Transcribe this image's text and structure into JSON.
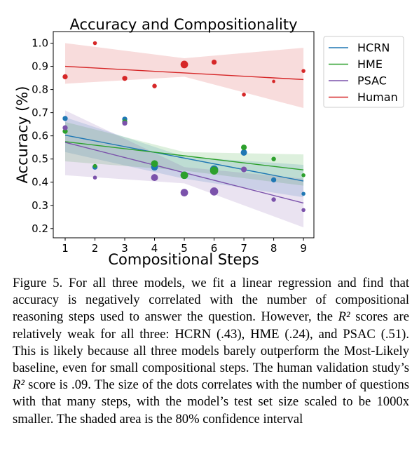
{
  "chart_data": {
    "type": "scatter",
    "title": "Accuracy and Compositionality",
    "xlabel": "Compositional Steps",
    "ylabel": "Accuracy (%)",
    "xlim": [
      0.6,
      9.35
    ],
    "ylim": [
      0.16,
      1.05
    ],
    "x_ticks": [
      1,
      2,
      3,
      4,
      5,
      6,
      7,
      8,
      9
    ],
    "y_ticks": [
      0.2,
      0.3,
      0.4,
      0.5,
      0.6,
      0.7,
      0.8,
      0.9,
      1.0
    ],
    "x_tick_labels": [
      "1",
      "2",
      "3",
      "4",
      "5",
      "6",
      "7",
      "8",
      "9"
    ],
    "y_tick_labels": [
      "0.2",
      "0.3",
      "0.4",
      "0.5",
      "0.6",
      "0.7",
      "0.8",
      "0.9",
      "1.0"
    ],
    "grid": false,
    "legend_position": "outside-right-top",
    "series": [
      {
        "name": "HCRN",
        "color": "#1f77b4",
        "points": [
          [
            1,
            0.675,
            0.5
          ],
          [
            2,
            0.465,
            0.5
          ],
          [
            3,
            0.672,
            0.5
          ],
          [
            4,
            0.465,
            0.8
          ],
          [
            5,
            0.43,
            0.9
          ],
          [
            6,
            0.455,
            1.0
          ],
          [
            7,
            0.528,
            0.7
          ],
          [
            8,
            0.41,
            0.5
          ],
          [
            9,
            0.35,
            0.3
          ]
        ],
        "fit": {
          "x": [
            1,
            9
          ],
          "y": [
            0.603,
            0.405
          ]
        },
        "ci": {
          "x": [
            1,
            5,
            9
          ],
          "upper": [
            0.68,
            0.51,
            0.475
          ],
          "lower": [
            0.53,
            0.415,
            0.335
          ]
        }
      },
      {
        "name": "HME",
        "color": "#2ca02c",
        "points": [
          [
            1,
            0.62,
            0.5
          ],
          [
            2,
            0.47,
            0.3
          ],
          [
            3,
            0.66,
            0.5
          ],
          [
            4,
            0.48,
            0.8
          ],
          [
            5,
            0.43,
            0.9
          ],
          [
            6,
            0.45,
            1.0
          ],
          [
            7,
            0.55,
            0.6
          ],
          [
            8,
            0.5,
            0.4
          ],
          [
            9,
            0.43,
            0.3
          ]
        ],
        "fit": {
          "x": [
            1,
            9
          ],
          "y": [
            0.575,
            0.453
          ]
        },
        "ci": {
          "x": [
            1,
            5,
            9
          ],
          "upper": [
            0.66,
            0.53,
            0.52
          ],
          "lower": [
            0.49,
            0.45,
            0.385
          ]
        }
      },
      {
        "name": "PSAC",
        "color": "#7b52ab",
        "points": [
          [
            1,
            0.635,
            0.5
          ],
          [
            2,
            0.42,
            0.3
          ],
          [
            3,
            0.655,
            0.5
          ],
          [
            4,
            0.42,
            0.8
          ],
          [
            5,
            0.355,
            0.9
          ],
          [
            6,
            0.36,
            1.0
          ],
          [
            7,
            0.455,
            0.6
          ],
          [
            8,
            0.325,
            0.4
          ],
          [
            9,
            0.28,
            0.3
          ]
        ],
        "fit": {
          "x": [
            1,
            9
          ],
          "y": [
            0.572,
            0.31
          ]
        },
        "ci": {
          "x": [
            1,
            5,
            9
          ],
          "upper": [
            0.71,
            0.465,
            0.415
          ],
          "lower": [
            0.43,
            0.395,
            0.205
          ]
        }
      },
      {
        "name": "Human",
        "color": "#d62728",
        "points": [
          [
            1,
            0.855,
            0.5
          ],
          [
            2,
            1.0,
            0.3
          ],
          [
            3,
            0.848,
            0.5
          ],
          [
            4,
            0.815,
            0.4
          ],
          [
            5,
            0.908,
            0.9
          ],
          [
            6,
            0.918,
            0.5
          ],
          [
            7,
            0.778,
            0.3
          ],
          [
            8,
            0.835,
            0.2
          ],
          [
            9,
            0.88,
            0.3
          ]
        ],
        "fit": {
          "x": [
            1,
            9
          ],
          "y": [
            0.9,
            0.843
          ]
        },
        "ci": {
          "x": [
            1,
            5,
            9
          ],
          "upper": [
            1.0,
            0.935,
            0.98
          ],
          "lower": [
            0.825,
            0.855,
            0.72
          ]
        }
      }
    ]
  },
  "caption": {
    "prefix": "Figure 5. For all three models, we fit a linear regression and find that accuracy is negatively correlated with the number of compositional reasoning steps used to answer the question. However, the ",
    "r2_symbol": "R²",
    "middle": " scores are relatively weak for all three: HCRN (.43), HME (.24), and PSAC (.51). This is likely because all three models barely outperform the Most-Likely baseline, even for small compositional steps. The human validation study’s ",
    "r2_symbol_2": "R²",
    "suffix": " score is .09. The size of the dots correlates with the number of questions with that many steps, with the model’s test set size scaled to be 1000x smaller. The shaded area is the 80% confidence interval"
  }
}
